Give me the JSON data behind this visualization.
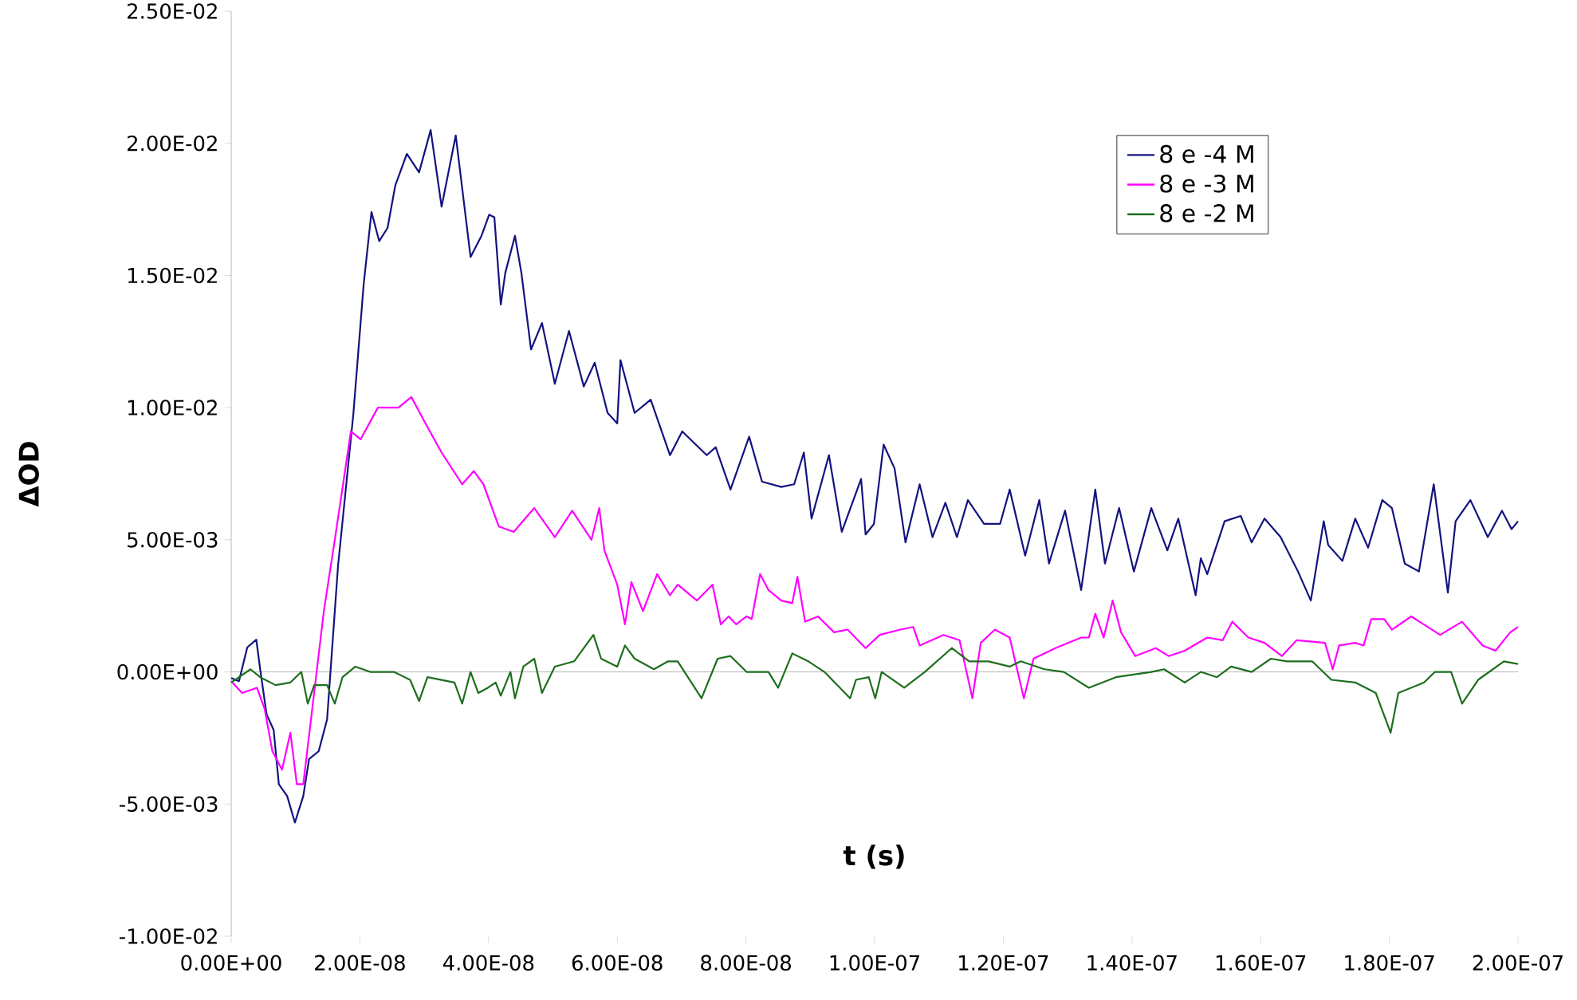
{
  "chart_data": {
    "type": "line",
    "xlabel": "t (s)",
    "ylabel": "ΔOD",
    "legend": "top right",
    "xlim": [
      0,
      2e-07
    ],
    "ylim": [
      -0.01,
      0.025
    ],
    "xticks": [
      {
        "value": 0,
        "label": "0.00E+00"
      },
      {
        "value": 2e-08,
        "label": "2.00E-08"
      },
      {
        "value": 4e-08,
        "label": "4.00E-08"
      },
      {
        "value": 6e-08,
        "label": "6.00E-08"
      },
      {
        "value": 8e-08,
        "label": "8.00E-08"
      },
      {
        "value": 1e-07,
        "label": "1.00E-07"
      },
      {
        "value": 1.2e-07,
        "label": "1.20E-07"
      },
      {
        "value": 1.4e-07,
        "label": "1.40E-07"
      },
      {
        "value": 1.6e-07,
        "label": "1.60E-07"
      },
      {
        "value": 1.8e-07,
        "label": "1.80E-07"
      },
      {
        "value": 2e-07,
        "label": "2.00E-07"
      }
    ],
    "yticks": [
      {
        "value": -0.01,
        "label": "-1.00E-02"
      },
      {
        "value": -0.005,
        "label": "-5.00E-03"
      },
      {
        "value": 0,
        "label": "0.00E+00"
      },
      {
        "value": 0.005,
        "label": "5.00E-03"
      },
      {
        "value": 0.01,
        "label": "1.00E-02"
      },
      {
        "value": 0.015,
        "label": "1.50E-02"
      },
      {
        "value": 0.02,
        "label": "2.00E-02"
      },
      {
        "value": 0.025,
        "label": "2.50E-02"
      }
    ],
    "series": [
      {
        "name": "8 e -4 M",
        "color": "#13137f",
        "x": [
          0.0,
          1.2e-09,
          2.5e-09,
          3.9e-09,
          4.5e-09,
          5.5e-09,
          6.6e-09,
          7.4e-09,
          8.7e-09,
          9.9e-09,
          1.12e-08,
          1.21e-08,
          1.36e-08,
          1.49e-08,
          1.66e-08,
          1.9e-08,
          2.06e-08,
          2.18e-08,
          2.3e-08,
          2.43e-08,
          2.55e-08,
          2.73e-08,
          2.92e-08,
          3.1e-08,
          3.27e-08,
          3.49e-08,
          3.72e-08,
          3.89e-08,
          4.01e-08,
          4.09e-08,
          4.19e-08,
          4.26e-08,
          4.41e-08,
          4.51e-08,
          4.66e-08,
          4.83e-08,
          5.03e-08,
          5.25e-08,
          5.48e-08,
          5.65e-08,
          5.85e-08,
          6e-08,
          6.05e-08,
          6.27e-08,
          6.52e-08,
          6.82e-08,
          7.01e-08,
          7.39e-08,
          7.53e-08,
          7.76e-08,
          8.05e-08,
          8.25e-08,
          8.55e-08,
          8.75e-08,
          8.9e-08,
          9.02e-08,
          9.29e-08,
          9.49e-08,
          9.79e-08,
          9.86e-08,
          9.99e-08,
          1.014e-07,
          1.031e-07,
          1.048e-07,
          1.07e-07,
          1.09e-07,
          1.11e-07,
          1.128e-07,
          1.145e-07,
          1.17e-07,
          1.195e-07,
          1.21e-07,
          1.234e-07,
          1.256e-07,
          1.271e-07,
          1.296e-07,
          1.321e-07,
          1.343e-07,
          1.358e-07,
          1.38e-07,
          1.403e-07,
          1.43e-07,
          1.455e-07,
          1.472e-07,
          1.499e-07,
          1.507e-07,
          1.517e-07,
          1.544e-07,
          1.569e-07,
          1.586e-07,
          1.606e-07,
          1.631e-07,
          1.658e-07,
          1.678e-07,
          1.698e-07,
          1.705e-07,
          1.727e-07,
          1.747e-07,
          1.767e-07,
          1.789e-07,
          1.804e-07,
          1.824e-07,
          1.846e-07,
          1.869e-07,
          1.891e-07,
          1.903e-07,
          1.926e-07,
          1.953e-07,
          1.975e-07,
          1.99e-07,
          2e-07
        ],
        "values": [
          -0.00023,
          -0.00035,
          0.00093,
          0.00122,
          0.0001,
          -0.0016,
          -0.0022,
          -0.00425,
          -0.0047,
          -0.0057,
          -0.0047,
          -0.0033,
          -0.003,
          -0.0018,
          0.004,
          0.0098,
          0.0147,
          0.0174,
          0.0163,
          0.0168,
          0.0184,
          0.0196,
          0.0189,
          0.0205,
          0.0176,
          0.0203,
          0.0157,
          0.0165,
          0.0173,
          0.0172,
          0.0139,
          0.0151,
          0.0165,
          0.0151,
          0.0122,
          0.0132,
          0.0109,
          0.0129,
          0.0108,
          0.0117,
          0.0098,
          0.0094,
          0.0118,
          0.0098,
          0.0103,
          0.0082,
          0.0091,
          0.0082,
          0.0085,
          0.0069,
          0.0089,
          0.0072,
          0.007,
          0.0071,
          0.0083,
          0.0058,
          0.0082,
          0.0053,
          0.0073,
          0.0052,
          0.0056,
          0.0086,
          0.0077,
          0.0049,
          0.0071,
          0.0051,
          0.0064,
          0.0051,
          0.0065,
          0.0056,
          0.0056,
          0.0069,
          0.0044,
          0.0065,
          0.0041,
          0.0061,
          0.0031,
          0.0069,
          0.0041,
          0.0062,
          0.0038,
          0.0062,
          0.0046,
          0.0058,
          0.0029,
          0.0043,
          0.0037,
          0.0057,
          0.0059,
          0.0049,
          0.0058,
          0.0051,
          0.0038,
          0.0027,
          0.0057,
          0.0048,
          0.0042,
          0.0058,
          0.0047,
          0.0065,
          0.0062,
          0.0041,
          0.0038,
          0.0071,
          0.003,
          0.0057,
          0.0065,
          0.0051,
          0.0061,
          0.0054,
          0.0057
        ]
      },
      {
        "name": "8 e -3 M",
        "color": "#ff00ff",
        "x": [
          0.0,
          1.7e-09,
          4e-09,
          5.2e-09,
          6.4e-09,
          7.9e-09,
          9.2e-09,
          1.02e-08,
          1.12e-08,
          1.24e-08,
          1.44e-08,
          1.61e-08,
          1.86e-08,
          2.01e-08,
          2.28e-08,
          2.6e-08,
          2.8e-08,
          3.02e-08,
          3.27e-08,
          3.59e-08,
          3.77e-08,
          3.92e-08,
          4.16e-08,
          4.39e-08,
          4.71e-08,
          5.03e-08,
          5.3e-08,
          5.6e-08,
          5.72e-08,
          5.8e-08,
          6e-08,
          6.12e-08,
          6.22e-08,
          6.4e-08,
          6.62e-08,
          6.82e-08,
          6.94e-08,
          7.24e-08,
          7.48e-08,
          7.61e-08,
          7.73e-08,
          7.85e-08,
          8.01e-08,
          8.09e-08,
          8.22e-08,
          8.35e-08,
          8.55e-08,
          8.72e-08,
          8.8e-08,
          8.92e-08,
          9.12e-08,
          9.37e-08,
          9.58e-08,
          9.86e-08,
          1.008e-07,
          1.04e-07,
          1.06e-07,
          1.07e-07,
          1.107e-07,
          1.132e-07,
          1.152e-07,
          1.165e-07,
          1.187e-07,
          1.21e-07,
          1.232e-07,
          1.247e-07,
          1.281e-07,
          1.321e-07,
          1.333e-07,
          1.343e-07,
          1.356e-07,
          1.37e-07,
          1.383e-07,
          1.405e-07,
          1.437e-07,
          1.457e-07,
          1.482e-07,
          1.517e-07,
          1.541e-07,
          1.556e-07,
          1.581e-07,
          1.606e-07,
          1.633e-07,
          1.656e-07,
          1.7e-07,
          1.712e-07,
          1.722e-07,
          1.747e-07,
          1.76e-07,
          1.772e-07,
          1.792e-07,
          1.804e-07,
          1.834e-07,
          1.879e-07,
          1.913e-07,
          1.945e-07,
          1.965e-07,
          1.988e-07,
          2e-07
        ],
        "values": [
          -0.00035,
          -0.0008,
          -0.0006,
          -0.0014,
          -0.003,
          -0.0037,
          -0.0023,
          -0.00425,
          -0.00425,
          -0.0018,
          0.0023,
          0.005,
          0.0091,
          0.0088,
          0.01,
          0.01,
          0.0104,
          0.0094,
          0.0083,
          0.0071,
          0.0076,
          0.0071,
          0.0055,
          0.0053,
          0.0062,
          0.0051,
          0.0061,
          0.005,
          0.0062,
          0.0046,
          0.0033,
          0.0018,
          0.0034,
          0.0023,
          0.0037,
          0.0029,
          0.0033,
          0.0027,
          0.0033,
          0.0018,
          0.0021,
          0.0018,
          0.0021,
          0.002,
          0.0037,
          0.0031,
          0.0027,
          0.0026,
          0.0036,
          0.0019,
          0.0021,
          0.0015,
          0.0016,
          0.0009,
          0.0014,
          0.0016,
          0.0017,
          0.001,
          0.0014,
          0.0012,
          -0.001,
          0.0011,
          0.0016,
          0.0013,
          -0.001,
          0.0005,
          0.0009,
          0.0013,
          0.0013,
          0.0022,
          0.0013,
          0.0027,
          0.0015,
          0.0006,
          0.0009,
          0.0006,
          0.0008,
          0.0013,
          0.0012,
          0.0019,
          0.0013,
          0.0011,
          0.0006,
          0.0012,
          0.0011,
          0.0001,
          0.001,
          0.0011,
          0.001,
          0.002,
          0.002,
          0.0016,
          0.0021,
          0.0014,
          0.0019,
          0.001,
          0.0008,
          0.0015,
          0.0017
        ]
      },
      {
        "name": "8 e -2 M",
        "color": "#1e6e1e",
        "x": [
          0.0,
          3e-09,
          4.5e-09,
          6.9e-09,
          9.2e-09,
          1.09e-08,
          1.19e-08,
          1.29e-08,
          1.49e-08,
          1.61e-08,
          1.73e-08,
          1.93e-08,
          2.16e-08,
          2.53e-08,
          2.78e-08,
          2.92e-08,
          3.05e-08,
          3.47e-08,
          3.59e-08,
          3.72e-08,
          3.84e-08,
          3.99e-08,
          4.11e-08,
          4.19e-08,
          4.34e-08,
          4.41e-08,
          4.54e-08,
          4.71e-08,
          4.83e-08,
          5.03e-08,
          5.33e-08,
          5.63e-08,
          5.75e-08,
          6e-08,
          6.12e-08,
          6.27e-08,
          6.57e-08,
          6.79e-08,
          6.94e-08,
          7.31e-08,
          7.56e-08,
          7.76e-08,
          8.01e-08,
          8.35e-08,
          8.5e-08,
          8.72e-08,
          8.97e-08,
          9.22e-08,
          9.62e-08,
          9.71e-08,
          9.91e-08,
          1.001e-07,
          1.011e-07,
          1.046e-07,
          1.078e-07,
          1.12e-07,
          1.147e-07,
          1.177e-07,
          1.21e-07,
          1.227e-07,
          1.264e-07,
          1.294e-07,
          1.333e-07,
          1.375e-07,
          1.43e-07,
          1.45e-07,
          1.482e-07,
          1.507e-07,
          1.532e-07,
          1.554e-07,
          1.586e-07,
          1.616e-07,
          1.641e-07,
          1.68e-07,
          1.71e-07,
          1.747e-07,
          1.779e-07,
          1.802e-07,
          1.814e-07,
          1.854e-07,
          1.871e-07,
          1.896e-07,
          1.913e-07,
          1.938e-07,
          1.978e-07,
          2e-07
        ],
        "values": [
          -0.0004,
          0.0001,
          -0.0002,
          -0.0005,
          -0.0004,
          0.0,
          -0.0012,
          -0.0005,
          -0.0005,
          -0.0012,
          -0.0002,
          0.0002,
          0.0,
          0.0,
          -0.0003,
          -0.0011,
          -0.0002,
          -0.0004,
          -0.0012,
          0.0,
          -0.0008,
          -0.0006,
          -0.0004,
          -0.0009,
          0.0,
          -0.001,
          0.0002,
          0.0005,
          -0.0008,
          0.0002,
          0.0004,
          0.0014,
          0.0005,
          0.0002,
          0.001,
          0.0005,
          0.0001,
          0.0004,
          0.0004,
          -0.001,
          0.0005,
          0.0006,
          0.0,
          0.0,
          -0.0006,
          0.0007,
          0.0004,
          0.0,
          -0.001,
          -0.0003,
          -0.0002,
          -0.001,
          0.0,
          -0.0006,
          0.0,
          0.0009,
          0.0004,
          0.0004,
          0.0002,
          0.0004,
          0.0001,
          0.0,
          -0.0006,
          -0.0002,
          0.0,
          0.0001,
          -0.0004,
          0.0,
          -0.0002,
          0.0002,
          0.0,
          0.0005,
          0.0004,
          0.0004,
          -0.0003,
          -0.0004,
          -0.0008,
          -0.0023,
          -0.0008,
          -0.0004,
          0.0,
          0.0,
          -0.0012,
          -0.0003,
          0.0004,
          0.0003
        ]
      }
    ]
  }
}
